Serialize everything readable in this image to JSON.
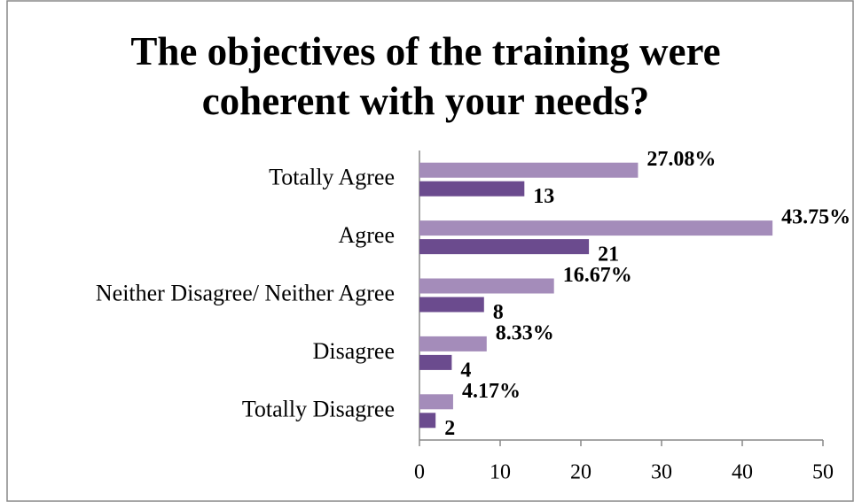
{
  "chart_data": {
    "type": "bar",
    "orientation": "horizontal",
    "title": "The objectives of the training were coherent with your needs?",
    "categories": [
      "Totally Agree",
      "Agree",
      "Neither Disagree/ Neither Agree",
      "Disagree",
      "Totally Disagree"
    ],
    "series": [
      {
        "color": "#a48cba",
        "values": [
          27.08,
          43.75,
          16.67,
          8.33,
          4.17
        ],
        "value_labels": [
          "27.08%",
          "43.75%",
          "16.67%",
          "8.33%",
          "4.17%"
        ]
      },
      {
        "color": "#6b4b8e",
        "values": [
          13,
          21,
          8,
          4,
          2
        ]
      }
    ],
    "xlim": [
      0,
      50
    ],
    "xticks": [
      0,
      10,
      20,
      30,
      40,
      50
    ],
    "grid": false
  }
}
